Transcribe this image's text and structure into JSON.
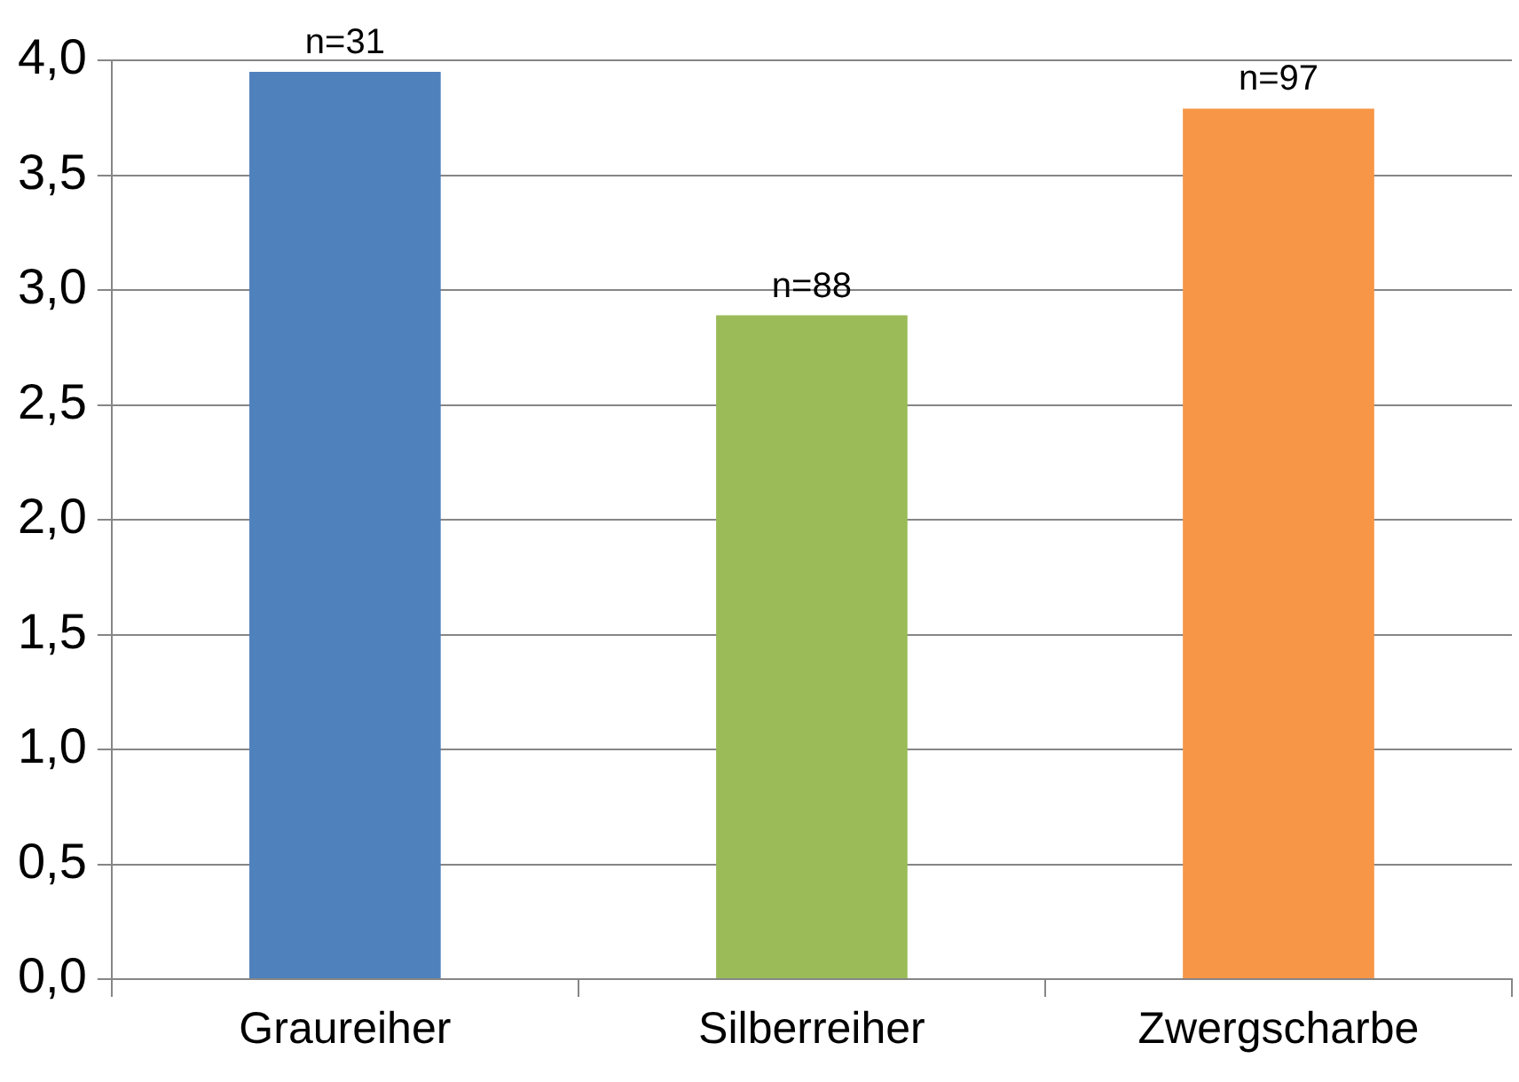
{
  "chart_data": {
    "type": "bar",
    "categories": [
      "Graureiher",
      "Silberreiher",
      "Zwergscharbe"
    ],
    "values": [
      3.95,
      2.89,
      3.79
    ],
    "colors": [
      "#4f81bd",
      "#9bbb59",
      "#f79646"
    ],
    "ylim": [
      0,
      4
    ],
    "yticks": [
      {
        "value": 0,
        "label": "0,0"
      },
      {
        "value": 0.5,
        "label": "0,5"
      },
      {
        "value": 1,
        "label": "1,0"
      },
      {
        "value": 1.5,
        "label": "1,5"
      },
      {
        "value": 2,
        "label": "2,0"
      },
      {
        "value": 2.5,
        "label": "2,5"
      },
      {
        "value": 3,
        "label": "3,0"
      },
      {
        "value": 3.5,
        "label": "3,5"
      },
      {
        "value": 4,
        "label": "4,0"
      }
    ],
    "grid": "y",
    "legend": false,
    "annotations": [
      {
        "text": "n=31",
        "x": "Graureiher",
        "y": 3.95
      },
      {
        "text": "n=88",
        "x": "Silberreiher",
        "y": 2.89
      },
      {
        "text": "n=97",
        "x": "Zwergscharbe",
        "y": 3.79
      }
    ]
  }
}
